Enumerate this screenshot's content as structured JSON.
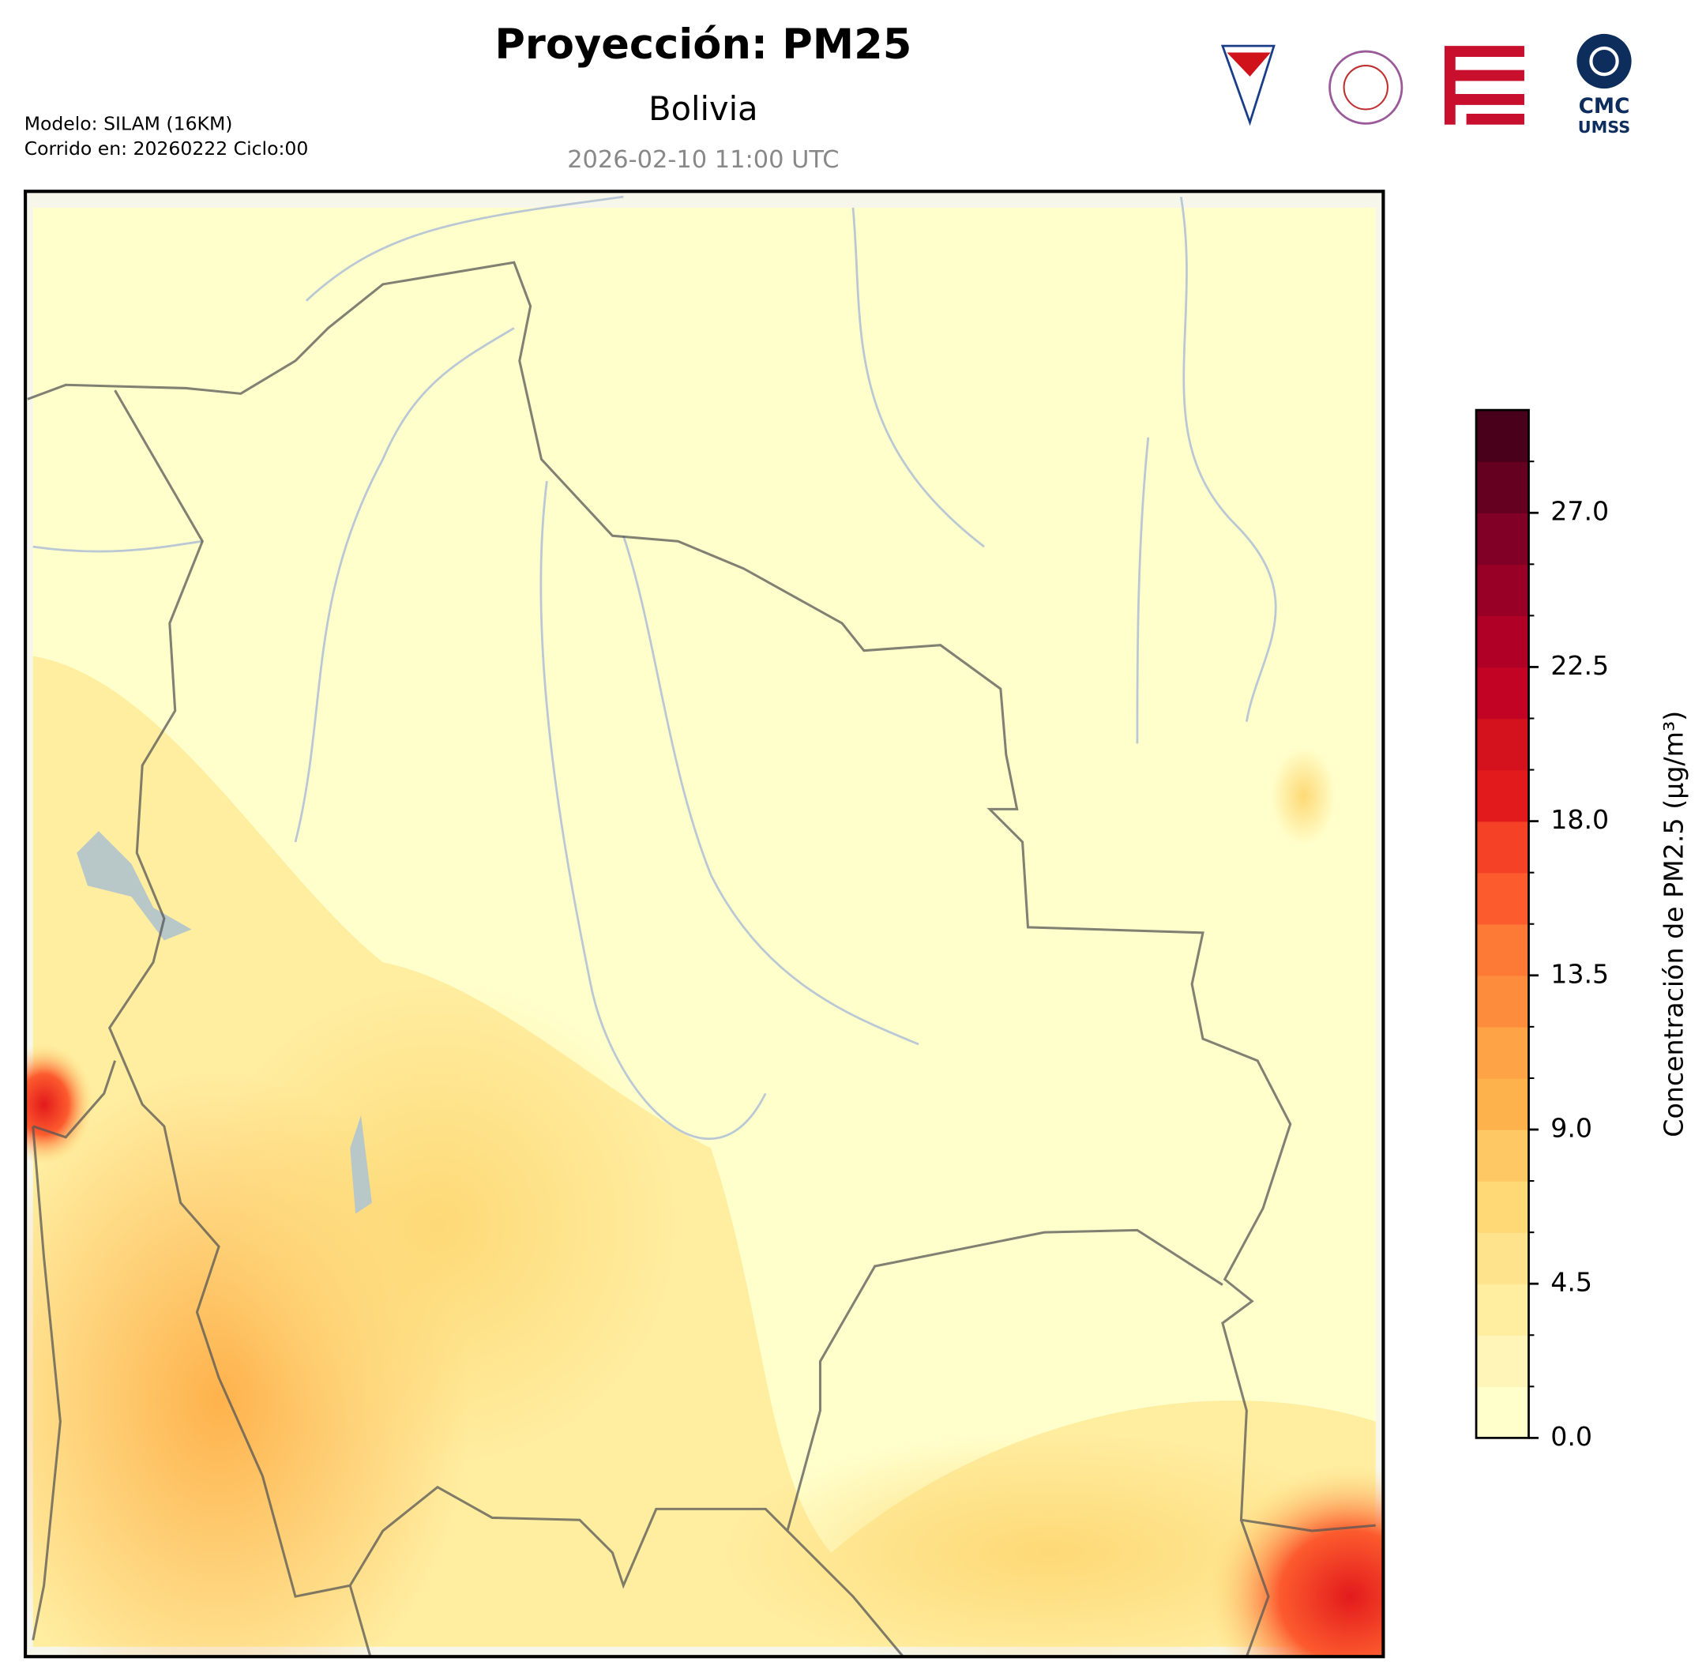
{
  "header": {
    "title": "Proyección: PM25",
    "subtitle": "Bolivia",
    "timestamp": "2026-02-10 11:00 UTC",
    "model": "Modelo: SILAM (16KM)",
    "run": "Corrido en: 20260222 Ciclo:00"
  },
  "logos": {
    "cmc": "CMC",
    "umss": "UMSS"
  },
  "colorbar": {
    "label": "Concentración de PM2.5 (µg/m³)",
    "lim": [
      0,
      30
    ],
    "ticks": [
      {
        "value": 0,
        "label": "0.0"
      },
      {
        "value": 4.5,
        "label": "4.5"
      },
      {
        "value": 9,
        "label": "9.0"
      },
      {
        "value": 13.5,
        "label": "13.5"
      },
      {
        "value": 18,
        "label": "18.0"
      },
      {
        "value": 22.5,
        "label": "22.5"
      },
      {
        "value": 27,
        "label": "27.0"
      }
    ],
    "colors": [
      "#ffffcc",
      "#fff5b8",
      "#ffeda0",
      "#fee38c",
      "#fed976",
      "#fec965",
      "#feb24c",
      "#fea446",
      "#fd8d3c",
      "#fd7a36",
      "#fc5b2e",
      "#f54226",
      "#e31a1c",
      "#d4121e",
      "#c20323",
      "#b10026",
      "#980026",
      "#800026",
      "#650021",
      "#49001a"
    ]
  }
}
